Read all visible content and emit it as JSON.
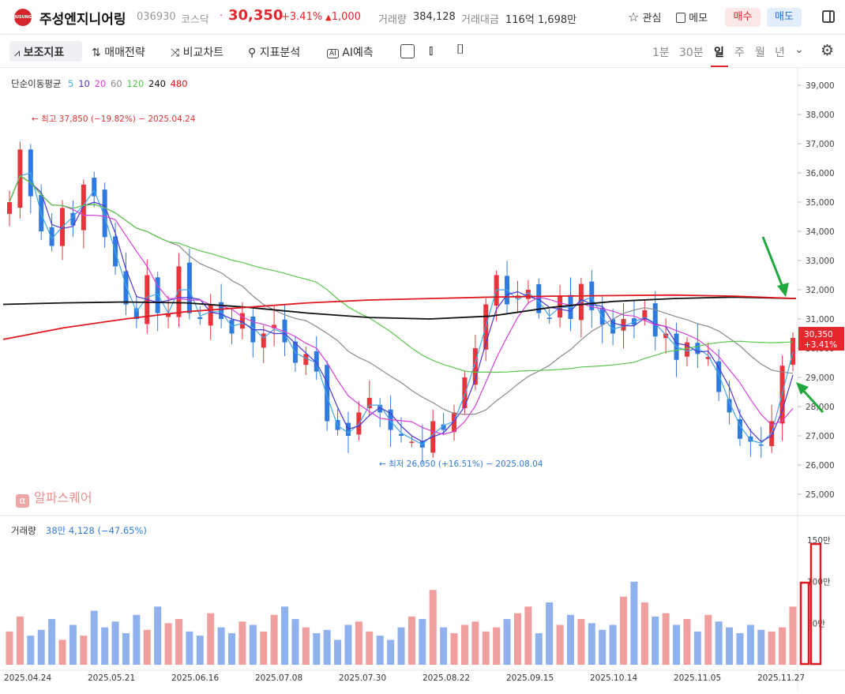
{
  "header": {
    "logo_text": "JUSUNG",
    "name": "주성엔지니어링",
    "code": "036930",
    "market": "코스닥",
    "price": "30,350",
    "change_pct": "+3.41%",
    "change_abs": "1,000",
    "volume_label": "거래량",
    "volume": "384,128",
    "amount_label": "거래대금",
    "amount": "116억 1,698만",
    "fav_label": "관심",
    "memo_label": "메모",
    "buy_label": "매수",
    "sell_label": "매도"
  },
  "toolbar": {
    "indicator": "보조지표",
    "strategy": "매매전략",
    "compare": "비교차트",
    "analysis": "지표분석",
    "ai": "AI예측",
    "periods": [
      "1분",
      "30분",
      "일",
      "주",
      "월",
      "년"
    ],
    "active_period": "일"
  },
  "chart_data": {
    "type": "candlestick",
    "ma_legend": {
      "title": "단순이동평균",
      "periods": [
        {
          "label": "5",
          "color": "#3fa7e6"
        },
        {
          "label": "10",
          "color": "#4a38d8"
        },
        {
          "label": "20",
          "color": "#d93fd9"
        },
        {
          "label": "60",
          "color": "#8a8a8a"
        },
        {
          "label": "120",
          "color": "#58c84a"
        },
        {
          "label": "240",
          "color": "#111111"
        },
        {
          "label": "480",
          "color": "#e0191e"
        }
      ]
    },
    "y_ticks": [
      "39,000",
      "38,000",
      "37,000",
      "36,000",
      "35,000",
      "34,000",
      "33,000",
      "32,000",
      "31,000",
      "30,000",
      "29,000",
      "28,000",
      "27,000",
      "26,000",
      "25,000"
    ],
    "ylim": [
      25000,
      39000
    ],
    "high_annotation": "최고 37,850 (−19.82%) − 2025.04.24",
    "low_annotation": "최저 26,050 (+16.51%) − 2025.08.04",
    "last_price": "30,350",
    "last_change": "+3.41%",
    "x_labels": [
      "2025.04.24",
      "2025.05.21",
      "2025.06.16",
      "2025.07.08",
      "2025.07.30",
      "2025.08.22",
      "2025.09.15",
      "2025.10.14",
      "2025.11.05",
      "2025.11.27"
    ],
    "close_trace": [
      35000,
      36800,
      35200,
      34000,
      33500,
      34800,
      34200,
      35600,
      35200,
      33800,
      32800,
      31500,
      31000,
      32500,
      31200,
      31200,
      32800,
      31200,
      31000,
      31500,
      31000,
      30500,
      31200,
      30200,
      30500,
      30800,
      30200,
      29500,
      29800,
      29200,
      27500,
      27200,
      27000,
      27800,
      28300,
      27800,
      27200,
      27000,
      26800,
      26600,
      27500,
      27200,
      27800,
      29000,
      30000,
      31500,
      32500,
      31500,
      31800,
      32000,
      31200,
      31000,
      31800,
      31000,
      32200,
      31300,
      30800,
      30500,
      31000,
      30800,
      31300,
      30400,
      30500,
      29600,
      30200,
      29800,
      29700,
      28500,
      27800,
      26900,
      26800,
      26700,
      27500,
      29400,
      30350
    ],
    "volume": {
      "label": "거래량",
      "value": "38만 4,128 (−47.65%)",
      "y_ticks": [
        "150만",
        "100만",
        "50만"
      ],
      "bars": [
        40,
        58,
        35,
        42,
        55,
        30,
        48,
        35,
        65,
        45,
        52,
        38,
        60,
        42,
        70,
        50,
        55,
        40,
        35,
        62,
        45,
        38,
        52,
        48,
        40,
        60,
        70,
        55,
        45,
        38,
        42,
        30,
        48,
        52,
        40,
        35,
        30,
        45,
        58,
        55,
        90,
        45,
        38,
        48,
        52,
        40,
        45,
        55,
        62,
        70,
        38,
        75,
        48,
        60,
        55,
        50,
        42,
        48,
        82,
        100,
        75,
        58,
        62,
        48,
        55,
        40,
        60,
        52,
        45,
        38,
        48,
        42,
        40,
        45,
        70
      ]
    }
  },
  "watermark": "알파스퀘어"
}
